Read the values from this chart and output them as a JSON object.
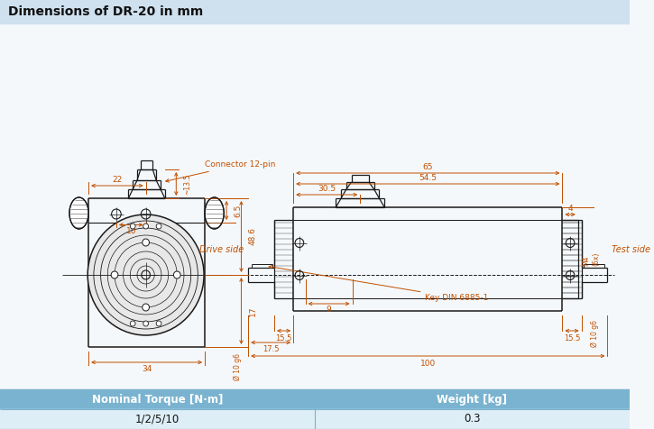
{
  "title": "Dimensions of DR-20 in mm",
  "title_bg": "#cfe0ee",
  "bg_color": "#f5f8fb",
  "table_header_bg": "#7ab3d0",
  "table_row_bg": "#ddeef7",
  "table_cols": [
    "Nominal Torque [N·m]",
    "Weight [kg]"
  ],
  "table_vals": [
    "1/2/5/10",
    "0.3"
  ],
  "line_color": "#1a1a1a",
  "dim_color": "#c05000",
  "draw_color": "#1a1a1a",
  "hatch_color": "#555555"
}
